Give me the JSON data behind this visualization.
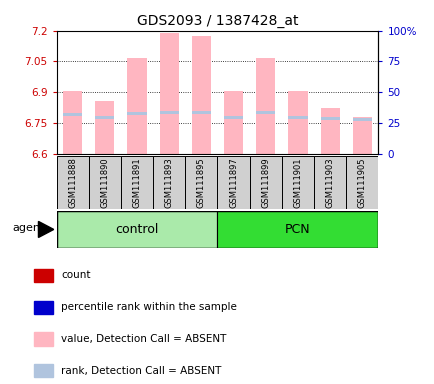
{
  "title": "GDS2093 / 1387428_at",
  "samples": [
    "GSM111888",
    "GSM111890",
    "GSM111891",
    "GSM111893",
    "GSM111895",
    "GSM111897",
    "GSM111899",
    "GSM111901",
    "GSM111903",
    "GSM111905"
  ],
  "groups": [
    {
      "name": "control",
      "color": "#AAEAAA",
      "samples_idx": [
        0,
        1,
        2,
        3,
        4
      ]
    },
    {
      "name": "PCN",
      "color": "#33DD33",
      "samples_idx": [
        5,
        6,
        7,
        8,
        9
      ]
    }
  ],
  "ylim_left": [
    6.6,
    7.2
  ],
  "ylim_right": [
    0,
    100
  ],
  "yticks_left": [
    6.6,
    6.75,
    6.9,
    7.05,
    7.2
  ],
  "yticks_right": [
    0,
    25,
    50,
    75,
    100
  ],
  "ytick_labels_left": [
    "6.6",
    "6.75",
    "6.9",
    "7.05",
    "7.2"
  ],
  "ytick_labels_right": [
    "0",
    "25",
    "50",
    "75",
    "100%"
  ],
  "left_tick_color": "#CC0000",
  "right_tick_color": "#0000CC",
  "bar_bottom": 6.6,
  "values_absent": [
    6.905,
    6.855,
    7.065,
    7.19,
    7.175,
    6.905,
    7.065,
    6.905,
    6.825,
    6.78
  ],
  "ranks_absent": [
    31.5,
    29.5,
    32.5,
    33.5,
    33.5,
    29.5,
    33.5,
    29.5,
    28.5,
    27.5
  ],
  "bar_color_absent": "#FFB6C1",
  "rank_color_absent": "#B0C4DE",
  "legend_items": [
    {
      "color": "#CC0000",
      "label": "count"
    },
    {
      "color": "#0000CC",
      "label": "percentile rank within the sample"
    },
    {
      "color": "#FFB6C1",
      "label": "value, Detection Call = ABSENT"
    },
    {
      "color": "#B0C4DE",
      "label": "rank, Detection Call = ABSENT"
    }
  ],
  "agent_label": "agent",
  "bar_width": 0.6
}
